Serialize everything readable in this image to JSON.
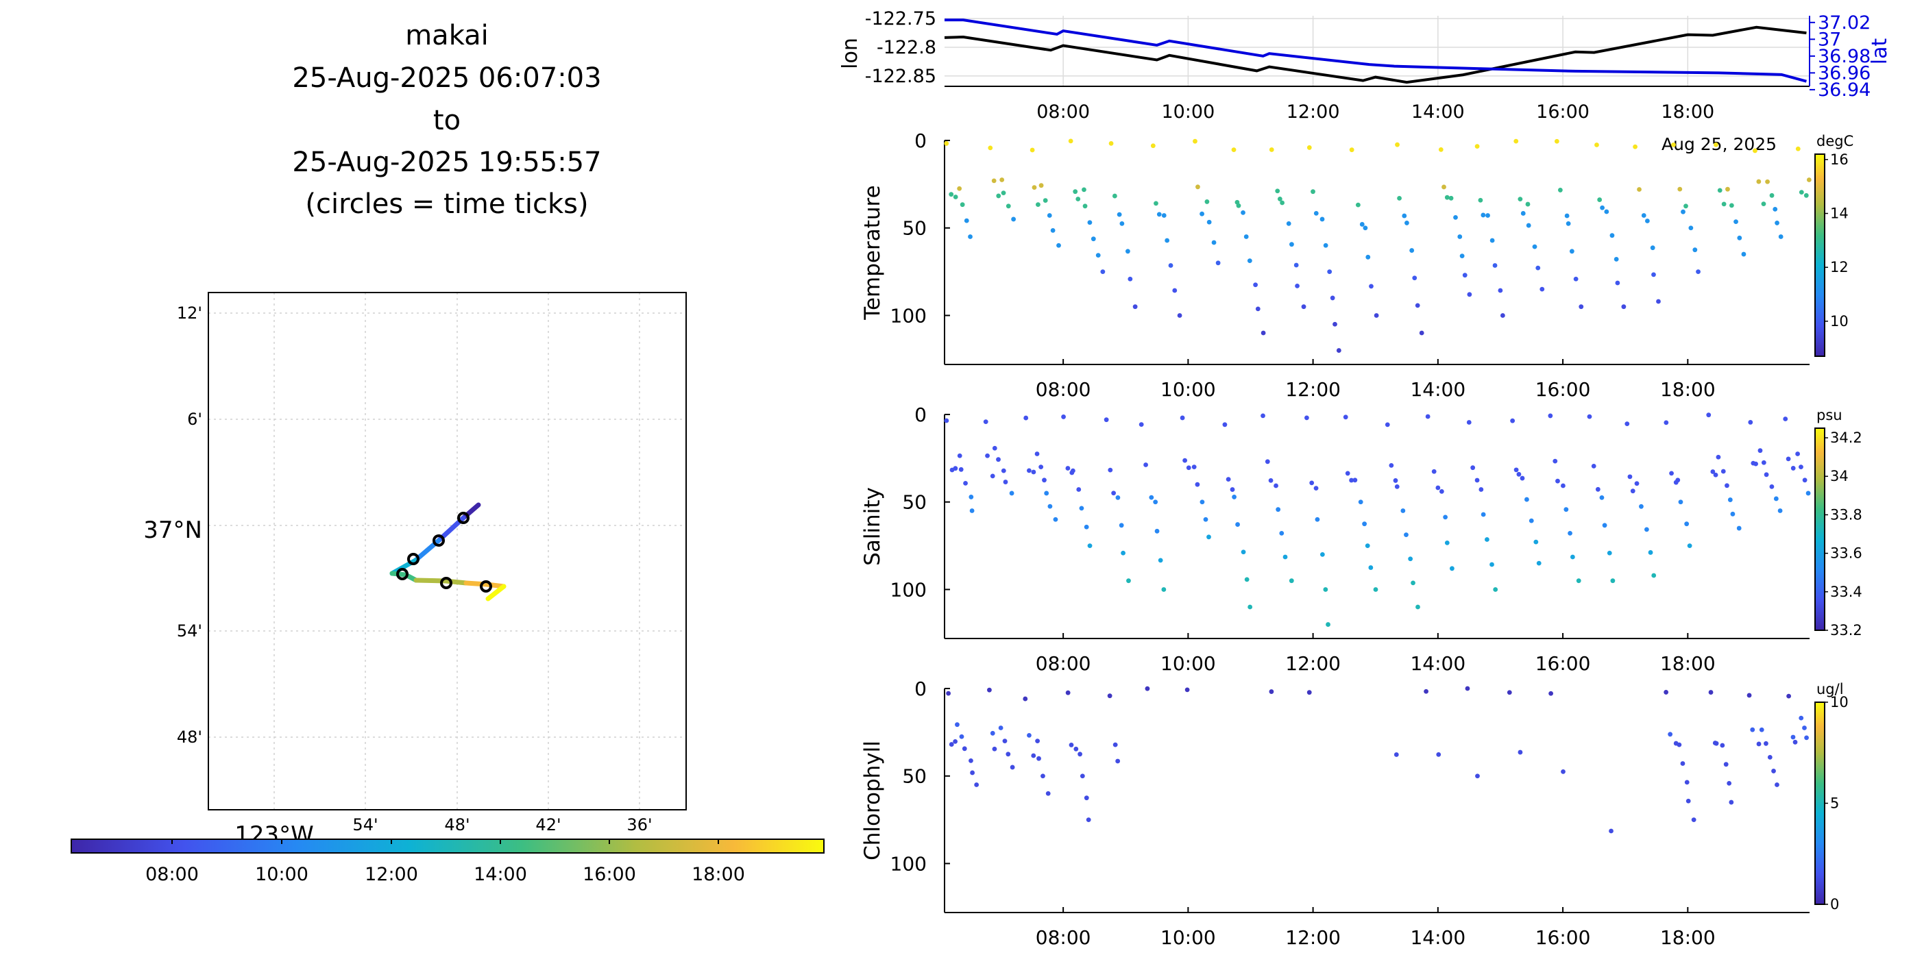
{
  "title": {
    "lines": [
      "makai",
      "25-Aug-2025 06:07:03",
      "to",
      "25-Aug-2025 19:55:57",
      "(circles = time ticks)"
    ]
  },
  "map": {
    "lat_labels": [
      "12'",
      "6'",
      "37°N",
      "54'",
      "48'"
    ],
    "lon_labels": [
      "123°W",
      "54'",
      "48'",
      "42'",
      "36'"
    ],
    "track_colorbar_ticks": [
      "08:00",
      "10:00",
      "12:00",
      "14:00",
      "16:00",
      "18:00"
    ]
  },
  "chart_data": [
    {
      "type": "line",
      "name": "position",
      "xlabel": "",
      "ylabel": "lon",
      "ylabel_right": "lat",
      "x_ticks": [
        "08:00",
        "10:00",
        "12:00",
        "14:00",
        "16:00",
        "18:00"
      ],
      "x_annotation": "Aug 25, 2025",
      "y_ticks_left": [
        "-122.75",
        "-122.8",
        "-122.85"
      ],
      "y_ticks_right": [
        "37.02",
        "37",
        "36.98",
        "36.96",
        "36.94"
      ],
      "colors": {
        "lon": "#000000",
        "lat": "#0000dd"
      },
      "series": [
        {
          "axis": "left",
          "hours": [
            6.1,
            6.4,
            7.8,
            8.0,
            9.5,
            9.7,
            11.1,
            11.3,
            12.8,
            13.0,
            13.5,
            14.4,
            16.2,
            16.5,
            18.0,
            18.4,
            19.1,
            19.9
          ],
          "values": [
            -122.783,
            -122.782,
            -122.805,
            -122.797,
            -122.822,
            -122.814,
            -122.841,
            -122.834,
            -122.858,
            -122.852,
            -122.861,
            -122.848,
            -122.808,
            -122.809,
            -122.778,
            -122.779,
            -122.765,
            -122.775
          ]
        },
        {
          "axis": "right",
          "hours": [
            6.1,
            6.4,
            7.9,
            8.0,
            9.5,
            9.7,
            11.2,
            11.3,
            12.9,
            13.3,
            14.7,
            16.2,
            18.5,
            19.5,
            19.9
          ],
          "values": [
            37.023,
            37.023,
            37.006,
            37.01,
            36.993,
            36.998,
            36.98,
            36.983,
            36.97,
            36.968,
            36.965,
            36.962,
            36.96,
            36.958,
            36.95
          ]
        }
      ]
    },
    {
      "type": "scatter",
      "name": "temperature",
      "ylabel": "Temperature",
      "y_ticks": [
        "0",
        "50",
        "100"
      ],
      "x_ticks": [
        "08:00",
        "10:00",
        "12:00",
        "14:00",
        "16:00",
        "18:00"
      ],
      "colorbar": {
        "unit": "degC",
        "ticks": [
          "16",
          "14",
          "12",
          "10"
        ],
        "range": [
          8.7,
          16.2
        ]
      }
    },
    {
      "type": "scatter",
      "name": "salinity",
      "ylabel": "Salinity",
      "y_ticks": [
        "0",
        "50",
        "100"
      ],
      "x_ticks": [
        "08:00",
        "10:00",
        "12:00",
        "14:00",
        "16:00",
        "18:00"
      ],
      "colorbar": {
        "unit": "psu",
        "ticks": [
          "34.2",
          "34",
          "33.8",
          "33.6",
          "33.4",
          "33.2"
        ],
        "range": [
          33.2,
          34.25
        ]
      }
    },
    {
      "type": "scatter",
      "name": "chlorophyll",
      "ylabel": "Chlorophyll",
      "y_ticks": [
        "0",
        "50",
        "100"
      ],
      "x_ticks": [
        "08:00",
        "10:00",
        "12:00",
        "14:00",
        "16:00",
        "18:00"
      ],
      "colorbar": {
        "unit": "ug/l",
        "ticks": [
          "10",
          "5",
          "0"
        ],
        "range": [
          0,
          10
        ]
      }
    }
  ]
}
